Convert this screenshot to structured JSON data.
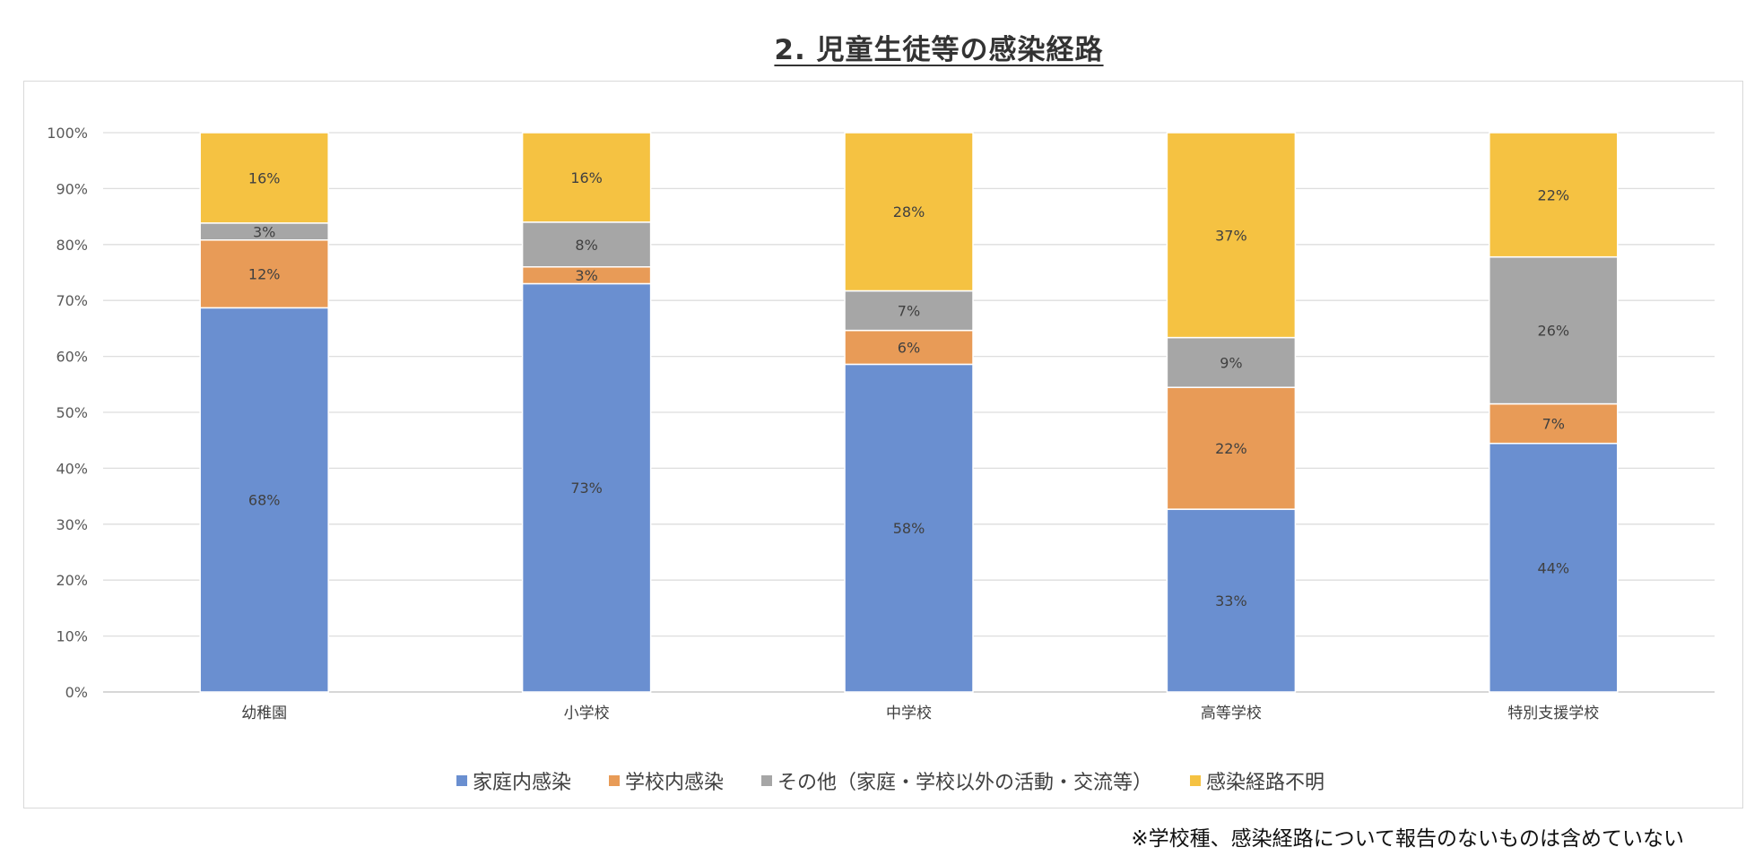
{
  "title": "2. 児童生徒等の感染経路",
  "footnote": "※学校種、感染経路について報告のないものは含めていない",
  "chart_data": {
    "type": "bar",
    "stacked": true,
    "percent_stacked": true,
    "categories": [
      "幼稚園",
      "小学校",
      "中学校",
      "高等学校",
      "特別支援学校"
    ],
    "series": [
      {
        "name": "家庭内感染",
        "color": "#6a8fd0",
        "values": [
          68,
          73,
          58,
          33,
          44
        ]
      },
      {
        "name": "学校内感染",
        "color": "#e89b57",
        "values": [
          12,
          3,
          6,
          22,
          7
        ]
      },
      {
        "name": "その他（家庭・学校以外の活動・交流等）",
        "color": "#a6a6a6",
        "values": [
          3,
          8,
          7,
          9,
          26
        ]
      },
      {
        "name": "感染経路不明",
        "color": "#f5c242",
        "values": [
          16,
          16,
          28,
          37,
          22
        ]
      }
    ],
    "ylim": [
      0,
      100
    ],
    "yticks": [
      "0%",
      "10%",
      "20%",
      "30%",
      "40%",
      "50%",
      "60%",
      "70%",
      "80%",
      "90%",
      "100%"
    ],
    "data_label_suffix": "%",
    "grid": true,
    "legend_position": "bottom"
  }
}
